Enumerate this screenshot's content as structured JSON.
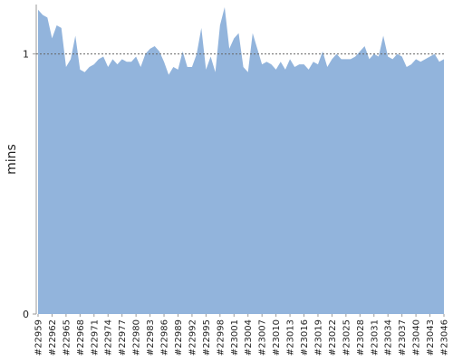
{
  "chart_data": {
    "type": "area",
    "y_label": "mins",
    "color": "#92b4dc",
    "categories": [
      "#22959",
      null,
      null,
      "#22962",
      null,
      null,
      "#22965",
      null,
      null,
      "#22968",
      null,
      null,
      "#22971",
      null,
      null,
      "#22974",
      null,
      null,
      "#22977",
      null,
      null,
      "#22980",
      null,
      null,
      "#22983",
      null,
      null,
      "#22986",
      null,
      null,
      "#22989",
      null,
      null,
      "#22992",
      null,
      null,
      "#22995",
      null,
      null,
      "#22998",
      null,
      null,
      "#23001",
      null,
      null,
      "#23004",
      null,
      null,
      "#23007",
      null,
      null,
      "#23010",
      null,
      null,
      "#23013",
      null,
      null,
      "#23016",
      null,
      null,
      "#23019",
      null,
      null,
      "#23022",
      null,
      null,
      "#23025",
      null,
      null,
      "#23028",
      null,
      null,
      "#23031",
      null,
      null,
      "#23034",
      null,
      null,
      "#23037",
      null,
      null,
      "#23040",
      null,
      null,
      "#23043",
      null,
      null,
      "#23046"
    ],
    "values": [
      1.17,
      1.15,
      1.14,
      1.06,
      1.11,
      1.1,
      0.95,
      0.98,
      1.07,
      0.94,
      0.93,
      0.95,
      0.96,
      0.98,
      0.99,
      0.95,
      0.98,
      0.96,
      0.98,
      0.97,
      0.97,
      0.99,
      0.95,
      1.0,
      1.02,
      1.03,
      1.01,
      0.97,
      0.92,
      0.95,
      0.94,
      1.01,
      0.95,
      0.95,
      1.0,
      1.1,
      0.94,
      0.99,
      0.93,
      1.11,
      1.18,
      1.02,
      1.06,
      1.08,
      0.95,
      0.93,
      1.08,
      1.02,
      0.96,
      0.97,
      0.96,
      0.94,
      0.97,
      0.94,
      0.98,
      0.95,
      0.96,
      0.96,
      0.94,
      0.97,
      0.96,
      1.01,
      0.95,
      0.98,
      1.0,
      0.98,
      0.98,
      0.98,
      0.99,
      1.01,
      1.03,
      0.98,
      1.0,
      0.99,
      1.07,
      0.99,
      0.98,
      1.0,
      0.99,
      0.95,
      0.96,
      0.98,
      0.97,
      0.98,
      0.99,
      1.0,
      0.97,
      0.98
    ],
    "ylim": [
      0,
      1.19
    ],
    "yticks": [
      0,
      1
    ],
    "grid": true
  }
}
